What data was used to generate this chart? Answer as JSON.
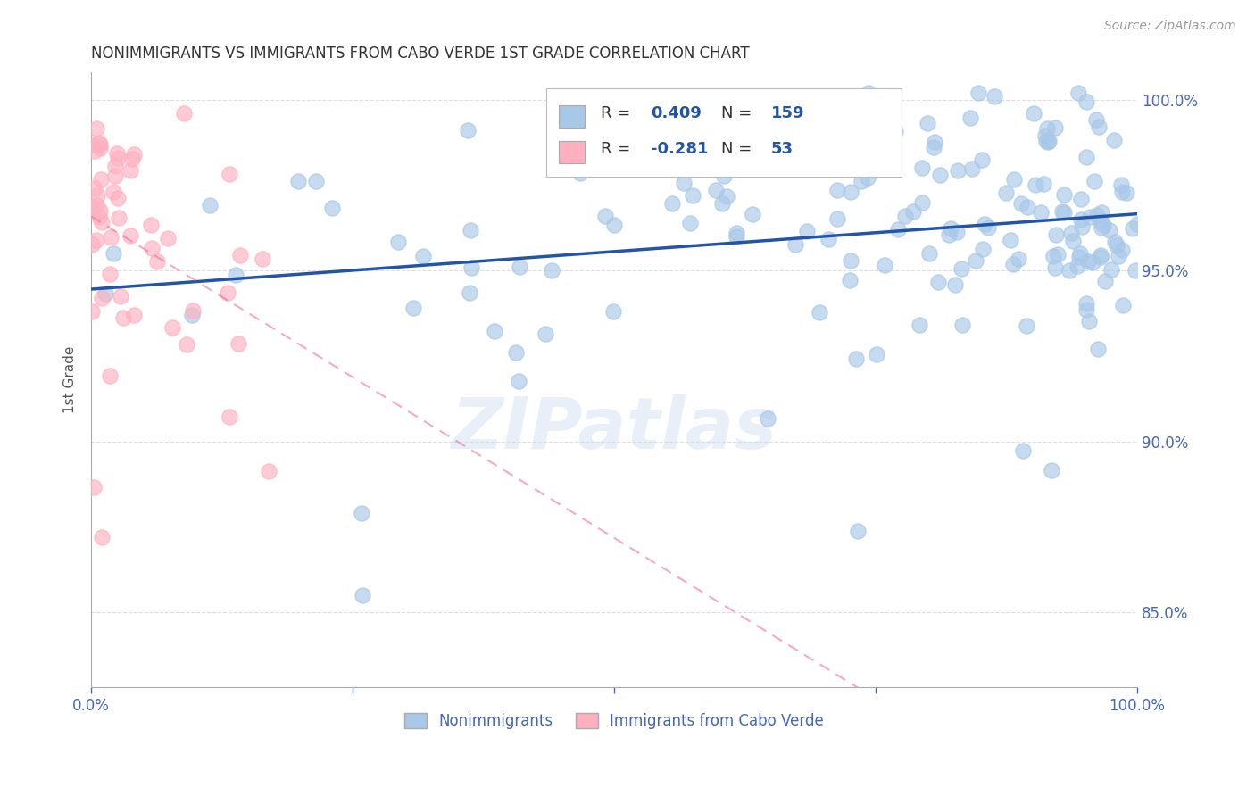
{
  "title": "NONIMMIGRANTS VS IMMIGRANTS FROM CABO VERDE 1ST GRADE CORRELATION CHART",
  "source_text": "Source: ZipAtlas.com",
  "ylabel": "1st Grade",
  "legend_label_blue": "Nonimmigrants",
  "legend_label_pink": "Immigrants from Cabo Verde",
  "R_blue": "0.409",
  "N_blue": "159",
  "R_pink": "-0.281",
  "N_pink": "53",
  "xmin": 0.0,
  "xmax": 1.0,
  "ymin": 0.828,
  "ymax": 1.008,
  "yticks": [
    0.85,
    0.9,
    0.95,
    1.0
  ],
  "ytick_labels": [
    "85.0%",
    "90.0%",
    "95.0%",
    "100.0%"
  ],
  "xticks": [
    0.0,
    0.25,
    0.5,
    0.75,
    1.0
  ],
  "xtick_labels": [
    "0.0%",
    "",
    "",
    "",
    "100.0%"
  ],
  "watermark": "ZIPatlas",
  "blue_marker_color": "#a8c8e8",
  "blue_edge_color": "#a8c8e8",
  "blue_line_color": "#2255aa",
  "pink_marker_color": "#ffb0c0",
  "pink_edge_color": "#ffb0c0",
  "pink_line_color": "#ee6688",
  "axis_color": "#aaaaaa",
  "tick_color": "#4466bb",
  "grid_color": "#dddddd",
  "title_color": "#333333",
  "source_color": "#999999",
  "label_color": "#555555",
  "legend_r_color": "#333333",
  "legend_n_color": "#2255aa",
  "blue_trend_start_y": 0.9505,
  "blue_trend_end_y": 0.9705,
  "pink_trend_start_y": 0.975,
  "pink_trend_end_y": 0.838
}
